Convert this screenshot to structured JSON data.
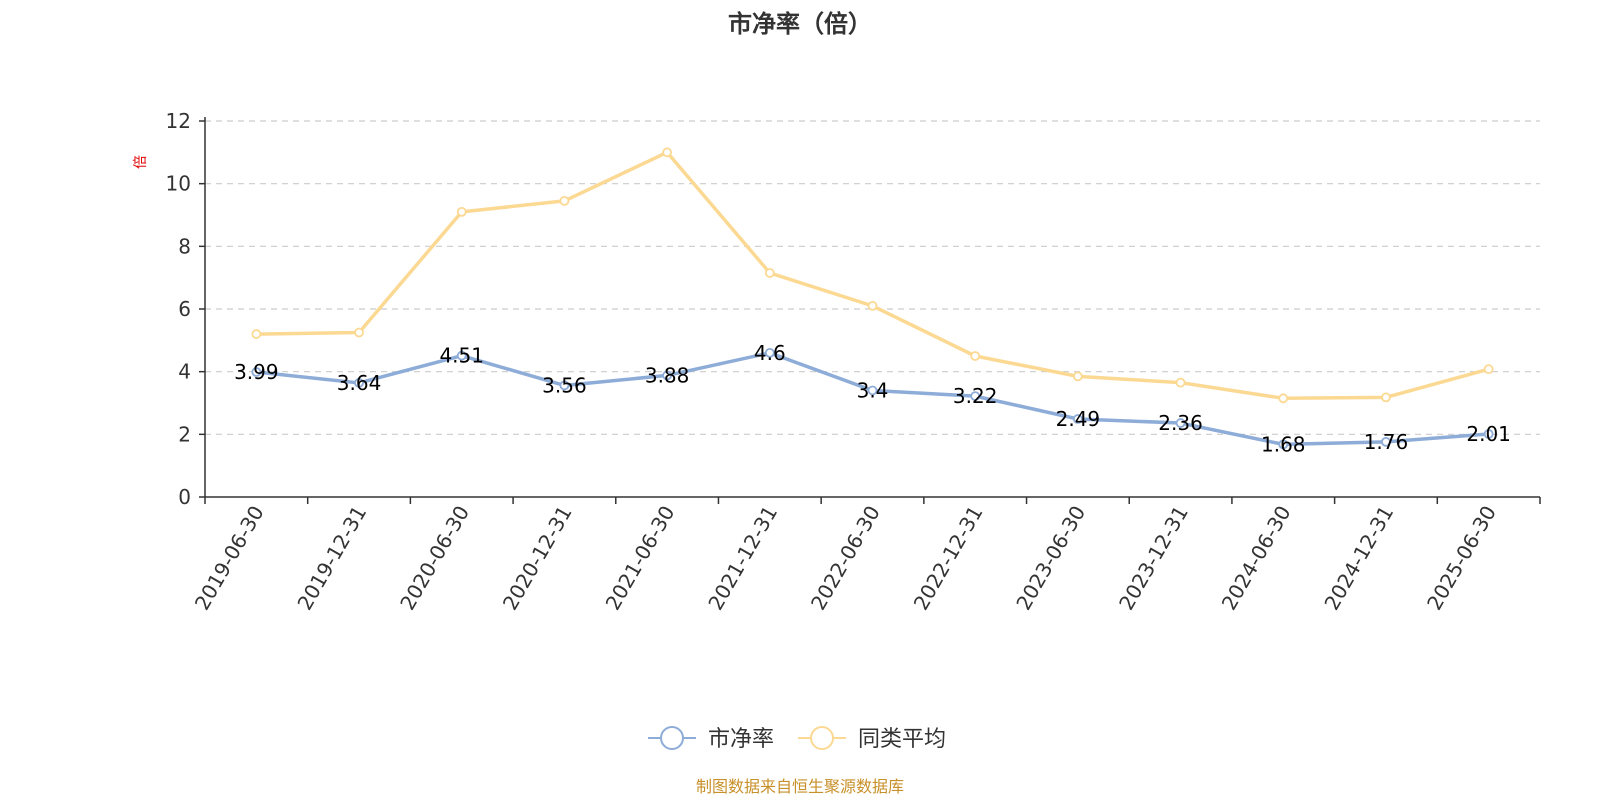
{
  "chart_data": {
    "type": "line",
    "title": "市净率（倍）",
    "ylabel": "倍",
    "ylim": [
      0,
      12
    ],
    "yticks": [
      0,
      2,
      4,
      6,
      8,
      10,
      12
    ],
    "categories": [
      "2019-06-30",
      "2019-12-31",
      "2020-06-30",
      "2020-12-31",
      "2021-06-30",
      "2021-12-31",
      "2022-06-30",
      "2022-12-31",
      "2023-06-30",
      "2023-12-31",
      "2024-06-30",
      "2024-12-31",
      "2025-06-30"
    ],
    "series": [
      {
        "name": "市净率",
        "color": "#8eacd8",
        "show_labels": true,
        "values": [
          3.99,
          3.64,
          4.51,
          3.56,
          3.88,
          4.6,
          3.4,
          3.22,
          2.49,
          2.36,
          1.68,
          1.76,
          2.01
        ]
      },
      {
        "name": "同类平均",
        "color": "#fbd993",
        "show_labels": false,
        "values": [
          5.2,
          5.25,
          9.1,
          9.45,
          11.0,
          7.15,
          6.1,
          4.5,
          3.85,
          3.65,
          3.15,
          3.18,
          4.08
        ]
      }
    ],
    "grid": true,
    "legend_position": "bottom-center",
    "source": "制图数据来自恒生聚源数据库"
  }
}
